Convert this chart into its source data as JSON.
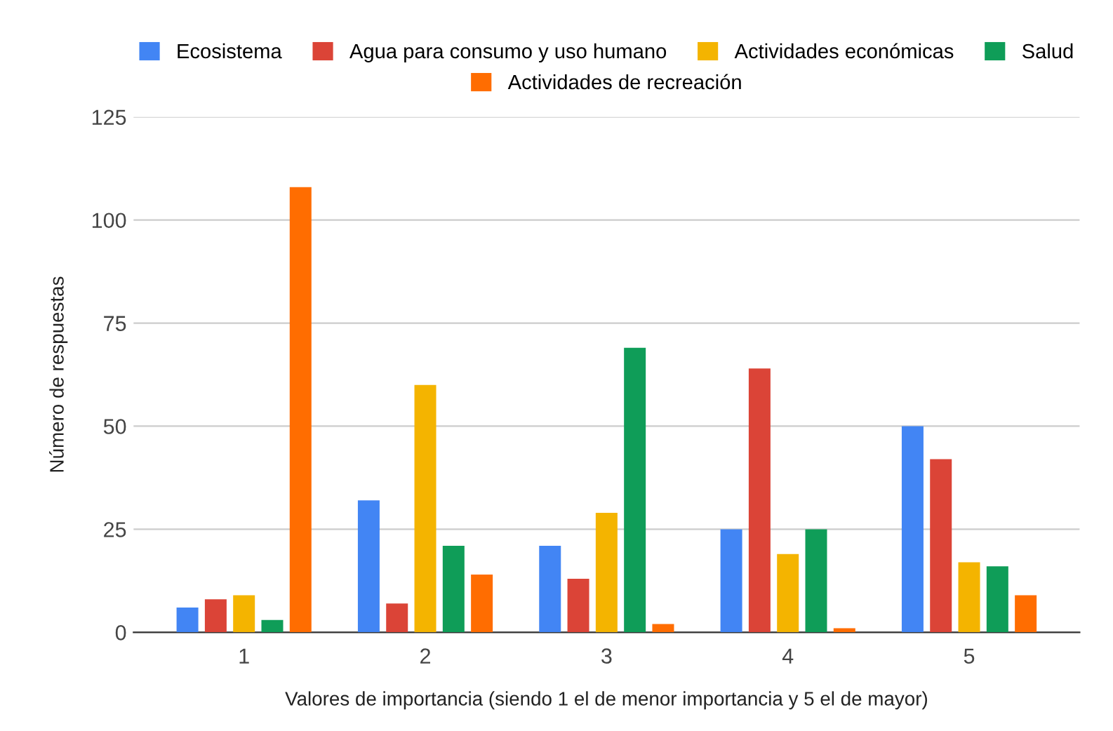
{
  "chart_data": {
    "type": "bar",
    "xlabel": "Valores de importancia (siendo 1 el de menor importancia y 5 el de mayor)",
    "ylabel": "Número de respuestas",
    "categories": [
      "1",
      "2",
      "3",
      "4",
      "5"
    ],
    "series": [
      {
        "name": "Ecosistema",
        "color": "#4285f4",
        "values": [
          6,
          32,
          21,
          25,
          50
        ]
      },
      {
        "name": "Agua para consumo y uso humano",
        "color": "#db4437",
        "values": [
          8,
          7,
          13,
          64,
          42
        ]
      },
      {
        "name": "Actividades económicas",
        "color": "#f4b400",
        "values": [
          9,
          60,
          29,
          19,
          17
        ]
      },
      {
        "name": "Salud",
        "color": "#0f9d58",
        "values": [
          3,
          21,
          69,
          25,
          16
        ]
      },
      {
        "name": "Actividades de recreación",
        "color": "#ff6d01",
        "values": [
          108,
          14,
          2,
          1,
          9
        ]
      }
    ],
    "ylim": [
      0,
      125
    ],
    "yticks": [
      0,
      25,
      50,
      75,
      100,
      125
    ],
    "grid": "y",
    "legend": "top"
  }
}
